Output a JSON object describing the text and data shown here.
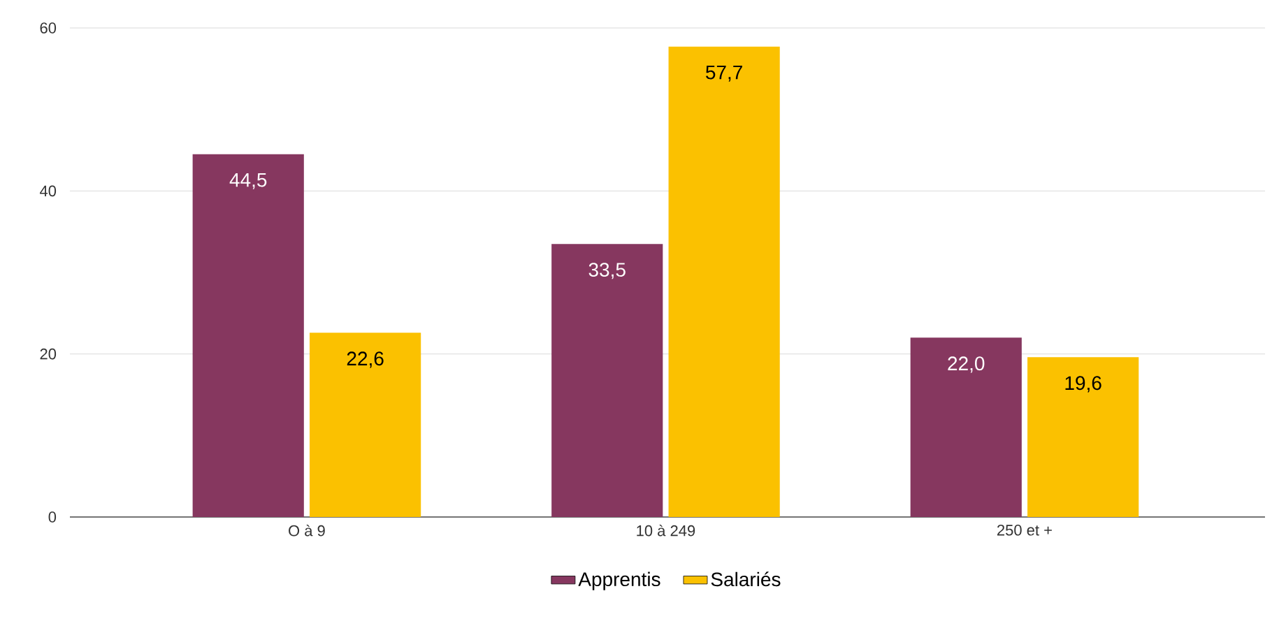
{
  "chart_data": {
    "type": "bar",
    "categories": [
      "O à 9",
      "10 à 249",
      "250 et +"
    ],
    "series": [
      {
        "name": "Apprentis",
        "color": "#86375f",
        "values": [
          44.5,
          33.5,
          22.0
        ],
        "value_labels": [
          "44,5",
          "33,5",
          "22,0"
        ]
      },
      {
        "name": "Salariés",
        "color": "#fbc100",
        "values": [
          22.6,
          57.7,
          19.6
        ],
        "value_labels": [
          "22,6",
          "57,7",
          "19,6"
        ]
      }
    ],
    "ylim": [
      0,
      60
    ],
    "yticks": [
      0,
      20,
      40,
      60
    ],
    "grid": "y",
    "legend": "bottom"
  }
}
